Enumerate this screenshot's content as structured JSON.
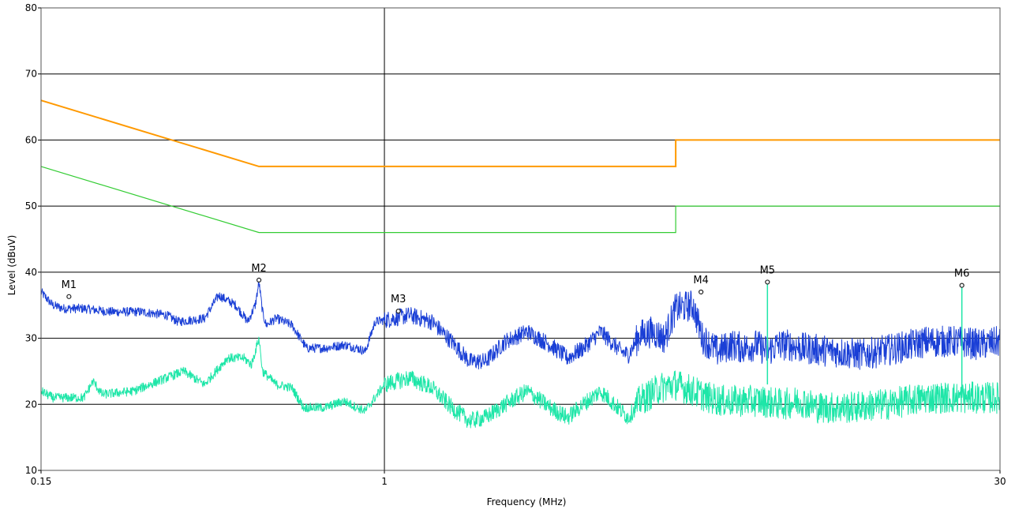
{
  "chart_data": {
    "type": "line",
    "xlabel": "Frequency (MHz)",
    "ylabel": "Level (dBuV)",
    "xscale": "log",
    "xlim": [
      0.15,
      30
    ],
    "ylim": [
      10,
      80
    ],
    "x_ticks": [
      {
        "value": 0.15,
        "label": "0.15"
      },
      {
        "value": 1,
        "label": "1"
      },
      {
        "value": 30,
        "label": "30"
      }
    ],
    "y_ticks": [
      10,
      20,
      30,
      40,
      50,
      60,
      70,
      80
    ],
    "grid": true,
    "series": [
      {
        "color": "#ff9900",
        "style": "limit",
        "points": [
          [
            0.15,
            66
          ],
          [
            0.5,
            56
          ],
          [
            5,
            56
          ],
          [
            5,
            60
          ],
          [
            30,
            60
          ]
        ]
      },
      {
        "color": "#33cc33",
        "style": "limit",
        "points": [
          [
            0.15,
            56
          ],
          [
            0.5,
            46
          ],
          [
            5,
            46
          ],
          [
            5,
            50
          ],
          [
            30,
            50
          ]
        ]
      },
      {
        "color": "#1a3fd6",
        "style": "noisy",
        "points": [
          [
            0.15,
            37
          ],
          [
            0.16,
            35
          ],
          [
            0.17,
            34.5
          ],
          [
            0.19,
            34.5
          ],
          [
            0.22,
            34
          ],
          [
            0.26,
            34
          ],
          [
            0.3,
            33.5
          ],
          [
            0.32,
            32.5
          ],
          [
            0.37,
            33
          ],
          [
            0.4,
            36.5
          ],
          [
            0.44,
            35
          ],
          [
            0.47,
            32.5
          ],
          [
            0.49,
            35
          ],
          [
            0.5,
            38.5
          ],
          [
            0.51,
            34
          ],
          [
            0.52,
            32
          ],
          [
            0.55,
            33
          ],
          [
            0.6,
            32
          ],
          [
            0.65,
            28.5
          ],
          [
            0.72,
            28.5
          ],
          [
            0.8,
            29
          ],
          [
            0.86,
            28.5
          ],
          [
            0.9,
            28
          ],
          [
            0.95,
            32.5
          ],
          [
            1.05,
            33
          ],
          [
            1.15,
            33.5
          ],
          [
            1.3,
            32.5
          ],
          [
            1.45,
            29.5
          ],
          [
            1.6,
            26.5
          ],
          [
            1.75,
            26.5
          ],
          [
            1.95,
            29.5
          ],
          [
            2.2,
            31
          ],
          [
            2.5,
            29
          ],
          [
            2.75,
            27
          ],
          [
            3.0,
            28.5
          ],
          [
            3.3,
            31
          ],
          [
            3.7,
            28
          ],
          [
            3.85,
            27.5
          ],
          [
            4.1,
            30.5
          ],
          [
            4.4,
            31
          ],
          [
            4.7,
            30
          ],
          [
            5.0,
            34.5
          ],
          [
            5.5,
            35
          ],
          [
            5.8,
            30
          ],
          [
            6.3,
            28
          ],
          [
            6.8,
            29
          ],
          [
            7.3,
            28.5
          ],
          [
            7.8,
            29
          ],
          [
            8.3,
            28
          ],
          [
            8.8,
            29
          ],
          [
            9.3,
            29
          ],
          [
            10,
            28.5
          ],
          [
            12,
            28
          ],
          [
            14,
            27.5
          ],
          [
            17,
            28.5
          ],
          [
            20,
            29.5
          ],
          [
            24,
            29.5
          ],
          [
            27,
            29
          ],
          [
            30,
            29.5
          ]
        ]
      },
      {
        "color": "#1ee6a8",
        "style": "noisy",
        "points": [
          [
            0.15,
            22
          ],
          [
            0.16,
            21
          ],
          [
            0.19,
            21
          ],
          [
            0.2,
            23.5
          ],
          [
            0.21,
            21.5
          ],
          [
            0.25,
            22
          ],
          [
            0.3,
            24
          ],
          [
            0.33,
            25
          ],
          [
            0.37,
            23
          ],
          [
            0.42,
            27
          ],
          [
            0.46,
            27
          ],
          [
            0.48,
            26
          ],
          [
            0.5,
            30
          ],
          [
            0.51,
            25
          ],
          [
            0.55,
            23
          ],
          [
            0.6,
            22.5
          ],
          [
            0.64,
            19.5
          ],
          [
            0.72,
            19.5
          ],
          [
            0.8,
            20.5
          ],
          [
            0.86,
            19.5
          ],
          [
            0.9,
            19
          ],
          [
            1.0,
            23
          ],
          [
            1.15,
            24
          ],
          [
            1.3,
            22.5
          ],
          [
            1.45,
            19.5
          ],
          [
            1.6,
            17.5
          ],
          [
            1.75,
            18
          ],
          [
            1.95,
            20
          ],
          [
            2.2,
            22
          ],
          [
            2.5,
            19.5
          ],
          [
            2.75,
            18
          ],
          [
            3.0,
            20
          ],
          [
            3.3,
            22
          ],
          [
            3.7,
            19
          ],
          [
            3.85,
            18
          ],
          [
            4.1,
            20.5
          ],
          [
            4.6,
            22.5
          ],
          [
            5.0,
            23
          ],
          [
            5.5,
            22
          ],
          [
            6,
            21
          ],
          [
            6.5,
            20.5
          ],
          [
            7,
            20.5
          ],
          [
            8,
            20.5
          ],
          [
            9,
            20
          ],
          [
            10,
            20.5
          ],
          [
            11,
            19.5
          ],
          [
            13,
            19.5
          ],
          [
            16,
            20
          ],
          [
            20,
            21
          ],
          [
            25,
            21
          ],
          [
            30,
            21
          ]
        ]
      }
    ],
    "markers": [
      {
        "label": "M1",
        "x": 0.175,
        "y": 36.3
      },
      {
        "label": "M2",
        "x": 0.5,
        "y": 38.8
      },
      {
        "label": "M3",
        "x": 1.08,
        "y": 34.1
      },
      {
        "label": "M4",
        "x": 5.75,
        "y": 37.0
      },
      {
        "label": "M5",
        "x": 8.3,
        "y": 38.5
      },
      {
        "label": "M6",
        "x": 24.3,
        "y": 38.0
      }
    ],
    "marker_lines": [
      {
        "x": 8.3,
        "y_from": 23.0,
        "y_to": 38.5
      },
      {
        "x": 24.3,
        "y_from": 21.5,
        "y_to": 38.0
      }
    ]
  }
}
